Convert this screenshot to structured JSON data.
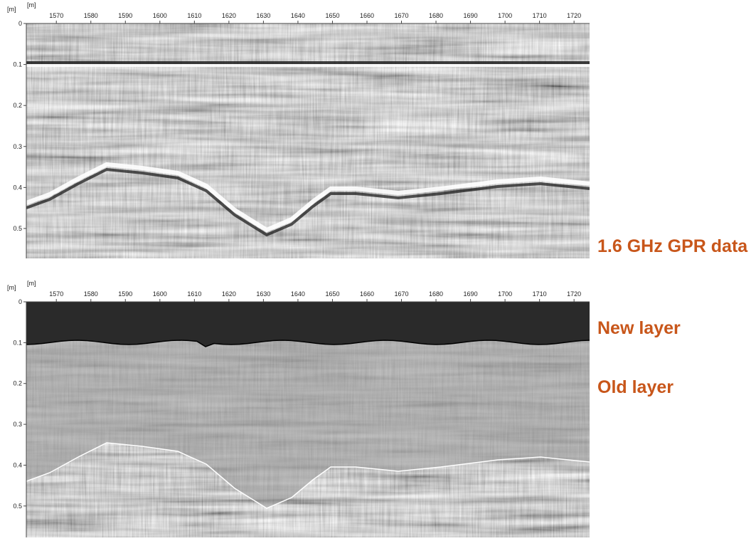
{
  "chart_data": [
    {
      "type": "radargram",
      "x_label": "[m]",
      "y_label": "[m]",
      "xlim": [
        1561.3,
        1724.5
      ],
      "xticks": [
        1570,
        1580,
        1590,
        1600,
        1610,
        1620,
        1630,
        1640,
        1650,
        1660,
        1670,
        1680,
        1690,
        1700,
        1710,
        1720
      ],
      "ylim": [
        0,
        0.573
      ],
      "yticks": [
        0,
        0.1,
        0.2,
        0.3,
        0.4,
        0.5
      ],
      "annotations": [
        "1.6 GHz GPR data"
      ]
    },
    {
      "type": "radargram-layers",
      "x_label": "[m]",
      "y_label": "[m]",
      "xlim": [
        1561.3,
        1724.5
      ],
      "xticks": [
        1570,
        1580,
        1590,
        1600,
        1610,
        1620,
        1630,
        1640,
        1650,
        1660,
        1670,
        1680,
        1690,
        1700,
        1710,
        1720
      ],
      "ylim": [
        0,
        0.577
      ],
      "yticks": [
        0,
        0.1,
        0.2,
        0.3,
        0.4,
        0.5
      ],
      "annotations": [
        "New layer",
        "Old layer"
      ]
    }
  ]
}
